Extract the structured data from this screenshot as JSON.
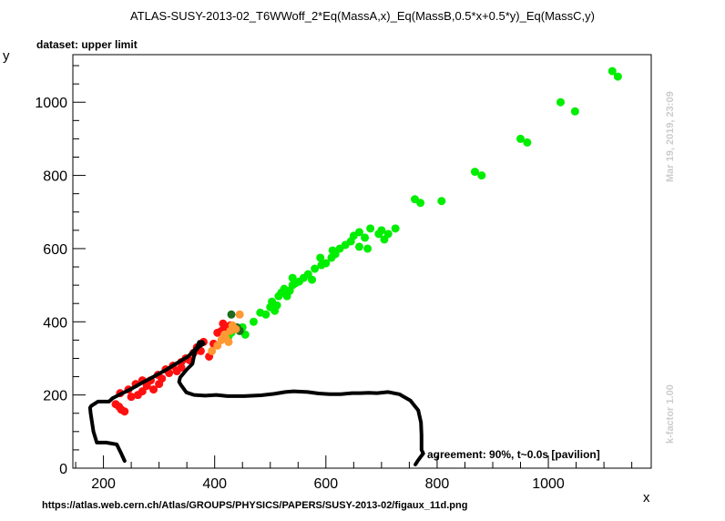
{
  "header": {
    "title": "ATLAS-SUSY-2013-02_T6WWoff_2*Eq(MassA,x)_Eq(MassB,0.5*x+0.5*y)_Eq(MassC,y)",
    "subtitle": "dataset: upper limit"
  },
  "footer": {
    "url": "https://atlas.web.cern.ch/Atlas/GROUPS/PHYSICS/PAPERS/SUSY-2013-02/figaux_11d.png"
  },
  "side": {
    "timestamp": "Mar 19, 2019, 23:09",
    "kfactor": "k-factor 1.00"
  },
  "chart_data": {
    "type": "scatter",
    "xlabel": "x",
    "ylabel": "y",
    "xlim": [
      145,
      1185
    ],
    "ylim": [
      0,
      1130
    ],
    "xticks": [
      200,
      400,
      600,
      800,
      1000
    ],
    "yticks": [
      0,
      200,
      400,
      600,
      800,
      1000
    ],
    "grid": false,
    "annotation": "agreement: 90%, t~0.0s [pavilion]",
    "colors": {
      "green": "#00ee00",
      "dark_green": "#1f6b1f",
      "red": "#ff1010",
      "orange": "#ff9933",
      "contour": "#000000"
    },
    "series": [
      {
        "color_key": "green",
        "points": [
          [
            430,
            370
          ],
          [
            445,
            375
          ],
          [
            450,
            385
          ],
          [
            470,
            400
          ],
          [
            482,
            425
          ],
          [
            492,
            420
          ],
          [
            500,
            440
          ],
          [
            503,
            455
          ],
          [
            508,
            430
          ],
          [
            512,
            445
          ],
          [
            515,
            470
          ],
          [
            520,
            480
          ],
          [
            525,
            490
          ],
          [
            530,
            470
          ],
          [
            535,
            485
          ],
          [
            540,
            500
          ],
          [
            545,
            505
          ],
          [
            552,
            510
          ],
          [
            560,
            520
          ],
          [
            568,
            530
          ],
          [
            575,
            515
          ],
          [
            580,
            545
          ],
          [
            592,
            555
          ],
          [
            600,
            560
          ],
          [
            610,
            575
          ],
          [
            617,
            585
          ],
          [
            625,
            600
          ],
          [
            635,
            610
          ],
          [
            645,
            620
          ],
          [
            650,
            635
          ],
          [
            660,
            645
          ],
          [
            670,
            630
          ],
          [
            675,
            600
          ],
          [
            680,
            655
          ],
          [
            695,
            640
          ],
          [
            700,
            650
          ],
          [
            705,
            625
          ],
          [
            712,
            640
          ],
          [
            725,
            655
          ],
          [
            760,
            735
          ],
          [
            770,
            725
          ],
          [
            808,
            730
          ],
          [
            868,
            810
          ],
          [
            880,
            800
          ],
          [
            950,
            900
          ],
          [
            962,
            890
          ],
          [
            1022,
            1000
          ],
          [
            1048,
            975
          ],
          [
            1115,
            1085
          ],
          [
            1125,
            1070
          ],
          [
            425,
            360
          ],
          [
            455,
            365
          ],
          [
            540,
            520
          ],
          [
            590,
            575
          ],
          [
            660,
            605
          ],
          [
            612,
            595
          ]
        ]
      },
      {
        "color_key": "dark_green",
        "points": [
          [
            440,
            385
          ],
          [
            430,
            420
          ],
          [
            445,
            375
          ]
        ]
      },
      {
        "color_key": "red",
        "points": [
          [
            222,
            175
          ],
          [
            228,
            168
          ],
          [
            232,
            160
          ],
          [
            238,
            155
          ],
          [
            230,
            205
          ],
          [
            245,
            215
          ],
          [
            250,
            195
          ],
          [
            258,
            230
          ],
          [
            262,
            200
          ],
          [
            270,
            210
          ],
          [
            278,
            225
          ],
          [
            285,
            240
          ],
          [
            290,
            215
          ],
          [
            298,
            255
          ],
          [
            305,
            245
          ],
          [
            312,
            270
          ],
          [
            318,
            260
          ],
          [
            325,
            280
          ],
          [
            332,
            265
          ],
          [
            340,
            290
          ],
          [
            348,
            300
          ],
          [
            355,
            295
          ],
          [
            362,
            315
          ],
          [
            368,
            330
          ],
          [
            375,
            320
          ],
          [
            380,
            345
          ],
          [
            390,
            305
          ],
          [
            398,
            340
          ],
          [
            405,
            370
          ],
          [
            412,
            375
          ],
          [
            415,
            395
          ],
          [
            420,
            385
          ],
          [
            428,
            390
          ],
          [
            270,
            240
          ],
          [
            300,
            230
          ],
          [
            340,
            275
          ]
        ]
      },
      {
        "color_key": "orange",
        "points": [
          [
            395,
            320
          ],
          [
            405,
            335
          ],
          [
            412,
            350
          ],
          [
            420,
            355
          ],
          [
            425,
            345
          ],
          [
            428,
            375
          ],
          [
            432,
            390
          ],
          [
            438,
            380
          ],
          [
            445,
            420
          ],
          [
            418,
            365
          ]
        ]
      }
    ],
    "contour": {
      "color_key": "contour",
      "points": [
        [
          238,
          20
        ],
        [
          232,
          40
        ],
        [
          224,
          65
        ],
        [
          205,
          70
        ],
        [
          188,
          70
        ],
        [
          182,
          100
        ],
        [
          177,
          150
        ],
        [
          176,
          165
        ],
        [
          178,
          170
        ],
        [
          190,
          182
        ],
        [
          210,
          182
        ],
        [
          217,
          192
        ],
        [
          228,
          200
        ],
        [
          248,
          215
        ],
        [
          268,
          232
        ],
        [
          290,
          250
        ],
        [
          312,
          268
        ],
        [
          330,
          285
        ],
        [
          352,
          305
        ],
        [
          368,
          330
        ],
        [
          372,
          345
        ],
        [
          378,
          345
        ],
        [
          380,
          340
        ],
        [
          372,
          332
        ],
        [
          365,
          320
        ],
        [
          362,
          300
        ],
        [
          360,
          285
        ],
        [
          350,
          270
        ],
        [
          338,
          248
        ],
        [
          336,
          236
        ],
        [
          339,
          228
        ],
        [
          349,
          207
        ],
        [
          363,
          200
        ],
        [
          383,
          198
        ],
        [
          403,
          200
        ],
        [
          423,
          197
        ],
        [
          453,
          197
        ],
        [
          483,
          199
        ],
        [
          507,
          203
        ],
        [
          527,
          208
        ],
        [
          542,
          210
        ],
        [
          567,
          208
        ],
        [
          587,
          204
        ],
        [
          607,
          202
        ],
        [
          627,
          202
        ],
        [
          647,
          205
        ],
        [
          662,
          205
        ],
        [
          677,
          206
        ],
        [
          692,
          205
        ],
        [
          712,
          208
        ],
        [
          732,
          202
        ],
        [
          752,
          185
        ],
        [
          766,
          158
        ],
        [
          771,
          125
        ],
        [
          772,
          90
        ],
        [
          772,
          50
        ],
        [
          775,
          40
        ],
        [
          770,
          30
        ],
        [
          765,
          20
        ],
        [
          761,
          10
        ]
      ]
    }
  }
}
